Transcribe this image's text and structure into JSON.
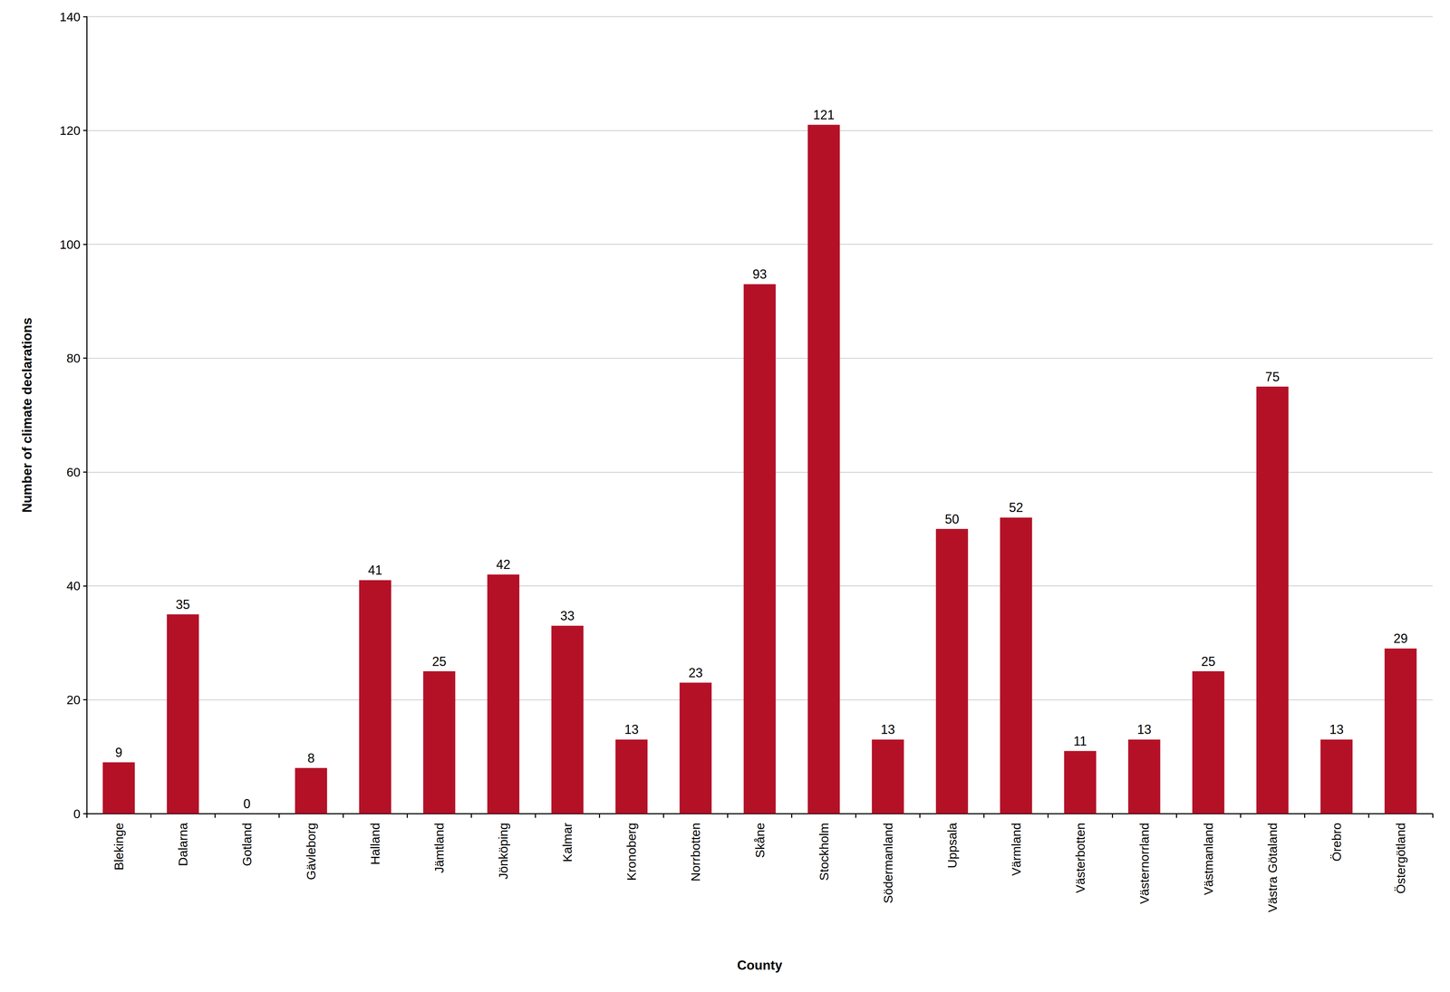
{
  "chart_data": {
    "type": "bar",
    "xlabel": "County",
    "ylabel": "Number of climate declarations",
    "categories": [
      "Blekinge",
      "Dalarna",
      "Gotland",
      "Gävleborg",
      "Halland",
      "Jämtland",
      "Jönköping",
      "Kalmar",
      "Kronoberg",
      "Norrbotten",
      "Skåne",
      "Stockholm",
      "Södermanland",
      "Uppsala",
      "Värmland",
      "Västerbotten",
      "Västernorrland",
      "Västmanland",
      "Västra Götaland",
      "Örebro",
      "Östergötland"
    ],
    "values": [
      9,
      35,
      0,
      8,
      41,
      25,
      42,
      33,
      13,
      23,
      93,
      121,
      13,
      50,
      52,
      11,
      13,
      25,
      75,
      13,
      29
    ],
    "color": "#b41127",
    "ylim": [
      0,
      140
    ],
    "yticks": [
      0,
      20,
      40,
      60,
      80,
      100,
      120,
      140
    ],
    "grid": true,
    "data_labels": true
  }
}
